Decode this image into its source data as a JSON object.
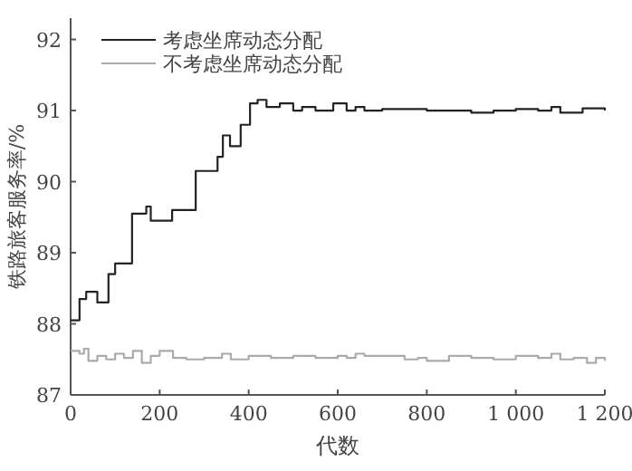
{
  "chart_data": {
    "type": "step",
    "xlabel": "代数",
    "ylabel": "铁路旅客服务率/%",
    "xlim": [
      0,
      1200
    ],
    "ylim": [
      87,
      92.3
    ],
    "xticks": [
      0,
      200,
      400,
      600,
      800,
      {
        "value": 1000,
        "label": "1 000"
      },
      {
        "value": 1200,
        "label": "1 200"
      }
    ],
    "yticks": [
      87,
      88,
      89,
      90,
      91,
      92
    ],
    "grid": false,
    "legend": "top left",
    "line_style": "solid",
    "marker": "none",
    "series": [
      {
        "name": "考虑坐席动态分配",
        "color": "#222222",
        "x": [
          0,
          20,
          35,
          60,
          85,
          100,
          138,
          170,
          180,
          228,
          281,
          330,
          342,
          358,
          382,
          403,
          420,
          440,
          470,
          500,
          520,
          550,
          590,
          620,
          640,
          660,
          700,
          800,
          850,
          900,
          950,
          1000,
          1050,
          1080,
          1100,
          1150,
          1200
        ],
        "values": [
          88.05,
          88.35,
          88.45,
          88.3,
          88.7,
          88.85,
          89.55,
          89.65,
          89.45,
          89.6,
          90.15,
          90.35,
          90.65,
          90.5,
          90.8,
          91.1,
          91.15,
          91.05,
          91.1,
          91.0,
          91.05,
          91.0,
          91.1,
          91.0,
          91.05,
          91.0,
          91.02,
          91.0,
          91.0,
          90.97,
          91.0,
          91.02,
          91.0,
          91.05,
          90.97,
          91.03,
          91.0
        ]
      },
      {
        "name": "不考虑坐席动态分配",
        "color": "#aaaaaa",
        "x": [
          0,
          20,
          30,
          40,
          60,
          80,
          100,
          120,
          140,
          160,
          180,
          200,
          230,
          260,
          300,
          340,
          360,
          400,
          450,
          500,
          550,
          600,
          620,
          640,
          660,
          700,
          750,
          780,
          800,
          850,
          900,
          950,
          1000,
          1050,
          1080,
          1100,
          1130,
          1160,
          1180,
          1200
        ],
        "values": [
          87.62,
          87.58,
          87.65,
          87.48,
          87.55,
          87.5,
          87.58,
          87.52,
          87.62,
          87.45,
          87.55,
          87.62,
          87.52,
          87.5,
          87.52,
          87.58,
          87.5,
          87.55,
          87.52,
          87.55,
          87.52,
          87.55,
          87.52,
          87.58,
          87.55,
          87.55,
          87.5,
          87.52,
          87.48,
          87.55,
          87.52,
          87.5,
          87.55,
          87.52,
          87.58,
          87.5,
          87.52,
          87.45,
          87.52,
          87.48
        ]
      }
    ]
  }
}
